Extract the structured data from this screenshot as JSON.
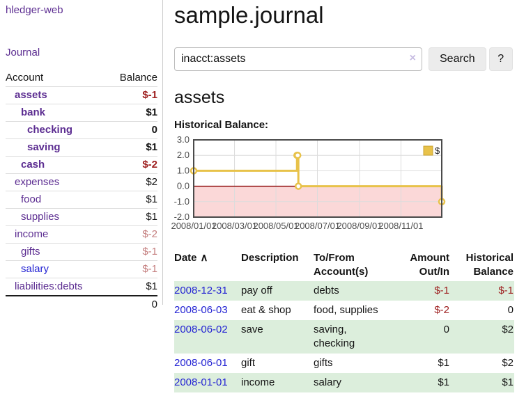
{
  "sidebar": {
    "brand": "hledger-web",
    "nav": {
      "journal": "Journal"
    },
    "accounts_table": {
      "headers": {
        "account": "Account",
        "balance": "Balance"
      },
      "rows": [
        {
          "name": "assets",
          "depth": 1,
          "bold": true,
          "link": "visited",
          "balance": "$-1",
          "balance_style": "neg-strong"
        },
        {
          "name": "bank",
          "depth": 2,
          "bold": true,
          "link": "visited",
          "balance": "$1",
          "balance_style": "pos"
        },
        {
          "name": "checking",
          "depth": 3,
          "bold": true,
          "link": "visited",
          "balance": "0",
          "balance_style": "pos"
        },
        {
          "name": "saving",
          "depth": 3,
          "bold": true,
          "link": "visited",
          "balance": "$1",
          "balance_style": "pos"
        },
        {
          "name": "cash",
          "depth": 2,
          "bold": true,
          "link": "visited",
          "balance": "$-2",
          "balance_style": "neg-strong"
        },
        {
          "name": "expenses",
          "depth": 1,
          "bold": false,
          "link": "visited",
          "balance": "$2",
          "balance_style": "pos"
        },
        {
          "name": "food",
          "depth": 2,
          "bold": false,
          "link": "visited",
          "balance": "$1",
          "balance_style": "pos"
        },
        {
          "name": "supplies",
          "depth": 2,
          "bold": false,
          "link": "visited",
          "balance": "$1",
          "balance_style": "pos"
        },
        {
          "name": "income",
          "depth": 1,
          "bold": false,
          "link": "visited",
          "balance": "$-2",
          "balance_style": "neg-soft"
        },
        {
          "name": "gifts",
          "depth": 2,
          "bold": false,
          "link": "visited",
          "balance": "$-1",
          "balance_style": "neg-soft"
        },
        {
          "name": "salary",
          "depth": 2,
          "bold": false,
          "link": "unvisited",
          "balance": "$-1",
          "balance_style": "neg-soft"
        },
        {
          "name": "liabilities:debts",
          "depth": 1,
          "bold": false,
          "link": "visited",
          "balance": "$1",
          "balance_style": "pos"
        }
      ],
      "total": "0"
    }
  },
  "header": {
    "title": "sample.journal"
  },
  "search": {
    "value": "inacct:assets",
    "clear_icon": "×",
    "button": "Search",
    "help_button": "?"
  },
  "account_page": {
    "title": "assets",
    "chart_label": "Historical Balance:"
  },
  "chart_data": {
    "type": "line",
    "step": true,
    "title": "Historical Balance:",
    "legend_label": "$",
    "legend_position": "top-right",
    "grid": true,
    "ylim": [
      -2,
      3
    ],
    "y_ticks": [
      3,
      2,
      1,
      0,
      -1,
      -2
    ],
    "x_range": [
      "2008-01-01",
      "2008-12-31"
    ],
    "x_ticks": [
      "2008/01/01",
      "2008/03/01",
      "2008/05/01",
      "2008/07/01",
      "2008/09/01",
      "2008/11/01"
    ],
    "series": [
      {
        "name": "$",
        "color": "#e8c24a",
        "points": [
          [
            "2008-01-01",
            1
          ],
          [
            "2008-06-01",
            2
          ],
          [
            "2008-06-02",
            2
          ],
          [
            "2008-06-03",
            0
          ],
          [
            "2008-12-31",
            -1
          ]
        ]
      }
    ],
    "negative_fill": "#fbd8d8",
    "zero_line_color": "#8f0d0d",
    "grid_color": "#dcdcdc",
    "border_color": "#4a4a4a"
  },
  "transactions": {
    "sort_icon": "∧",
    "headers": {
      "date": "Date",
      "description": "Description",
      "tofrom": "To/From Account(s)",
      "amount": "Amount Out/In",
      "balance": "Historical Balance"
    },
    "rows": [
      {
        "date": "2008-12-31",
        "description": "pay off",
        "accounts": "debts",
        "amount": "$-1",
        "amount_neg": true,
        "balance": "$-1",
        "balance_neg": true
      },
      {
        "date": "2008-06-03",
        "description": "eat & shop",
        "accounts": "food, supplies",
        "amount": "$-2",
        "amount_neg": true,
        "balance": "0",
        "balance_neg": false
      },
      {
        "date": "2008-06-02",
        "description": "save",
        "accounts": "saving, checking",
        "amount": "0",
        "amount_neg": false,
        "balance": "$2",
        "balance_neg": false
      },
      {
        "date": "2008-06-01",
        "description": "gift",
        "accounts": "gifts",
        "amount": "$1",
        "amount_neg": false,
        "balance": "$2",
        "balance_neg": false
      },
      {
        "date": "2008-01-01",
        "description": "income",
        "accounts": "salary",
        "amount": "$1",
        "amount_neg": false,
        "balance": "$1",
        "balance_neg": false
      }
    ]
  }
}
